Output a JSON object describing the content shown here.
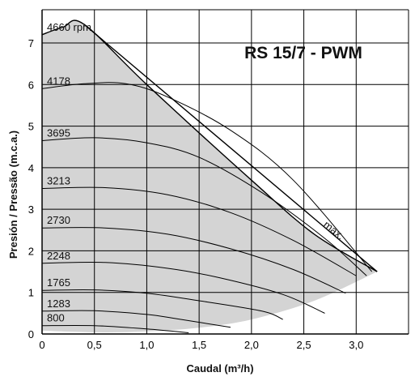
{
  "chart_data": {
    "type": "line",
    "title": "RS 15/7 - PWM",
    "xlabel": "Caudal (m³/h)",
    "ylabel": "Presión / Pressão (m.c.a.)",
    "xlim": [
      0,
      3.5
    ],
    "ylim": [
      0,
      7.8
    ],
    "x_ticks": [
      0,
      0.5,
      1.0,
      1.5,
      2.0,
      2.5,
      3.0
    ],
    "x_tick_labels": [
      "0",
      "0,5",
      "1,0",
      "1,5",
      "2,0",
      "2,5",
      "3,0"
    ],
    "y_ticks": [
      0,
      1,
      2,
      3,
      4,
      5,
      6,
      7
    ],
    "y_tick_labels": [
      "0",
      "1",
      "2",
      "3",
      "4",
      "5",
      "6",
      "7"
    ],
    "grid": true,
    "max_label": "max.",
    "colors": {
      "fill": "#d4d4d4",
      "curve": "#000000",
      "grid": "#000000"
    },
    "series": [
      {
        "name": "4660 rpm",
        "points": [
          [
            0,
            7.2
          ],
          [
            0.2,
            7.38
          ],
          [
            0.4,
            7.45
          ],
          [
            1.0,
            6.0
          ],
          [
            2.0,
            3.7
          ],
          [
            2.6,
            2.4
          ],
          [
            3.2,
            1.5
          ]
        ]
      },
      {
        "name": "4178",
        "points": [
          [
            0,
            5.9
          ],
          [
            0.4,
            6.02
          ],
          [
            0.8,
            6.02
          ],
          [
            1.2,
            5.7
          ],
          [
            1.8,
            4.9
          ],
          [
            2.4,
            3.7
          ],
          [
            3.15,
            1.5
          ]
        ]
      },
      {
        "name": "3695",
        "points": [
          [
            0,
            4.65
          ],
          [
            0.5,
            4.72
          ],
          [
            1.0,
            4.6
          ],
          [
            1.5,
            4.25
          ],
          [
            2.1,
            3.4
          ],
          [
            2.7,
            2.3
          ],
          [
            3.1,
            1.4
          ]
        ]
      },
      {
        "name": "3213",
        "points": [
          [
            0,
            3.5
          ],
          [
            0.6,
            3.52
          ],
          [
            1.2,
            3.35
          ],
          [
            1.8,
            2.92
          ],
          [
            2.4,
            2.25
          ],
          [
            3.0,
            1.4
          ]
        ]
      },
      {
        "name": "2730",
        "points": [
          [
            0,
            2.55
          ],
          [
            0.6,
            2.55
          ],
          [
            1.2,
            2.4
          ],
          [
            1.8,
            2.05
          ],
          [
            2.4,
            1.55
          ],
          [
            2.9,
            0.98
          ]
        ]
      },
      {
        "name": "2248",
        "points": [
          [
            0,
            1.7
          ],
          [
            0.6,
            1.72
          ],
          [
            1.2,
            1.58
          ],
          [
            1.7,
            1.35
          ],
          [
            2.3,
            0.95
          ],
          [
            2.7,
            0.5
          ]
        ]
      },
      {
        "name": "1765",
        "points": [
          [
            0,
            1.05
          ],
          [
            0.5,
            1.06
          ],
          [
            1.0,
            0.98
          ],
          [
            1.5,
            0.8
          ],
          [
            2.1,
            0.55
          ],
          [
            2.3,
            0.35
          ]
        ]
      },
      {
        "name": "1283",
        "points": [
          [
            0,
            0.55
          ],
          [
            0.5,
            0.56
          ],
          [
            1.0,
            0.47
          ],
          [
            1.3,
            0.36
          ],
          [
            1.8,
            0.16
          ]
        ]
      },
      {
        "name": "800",
        "points": [
          [
            0,
            0.2
          ],
          [
            0.5,
            0.2
          ],
          [
            1.0,
            0.12
          ],
          [
            1.4,
            0.03
          ]
        ]
      }
    ]
  }
}
